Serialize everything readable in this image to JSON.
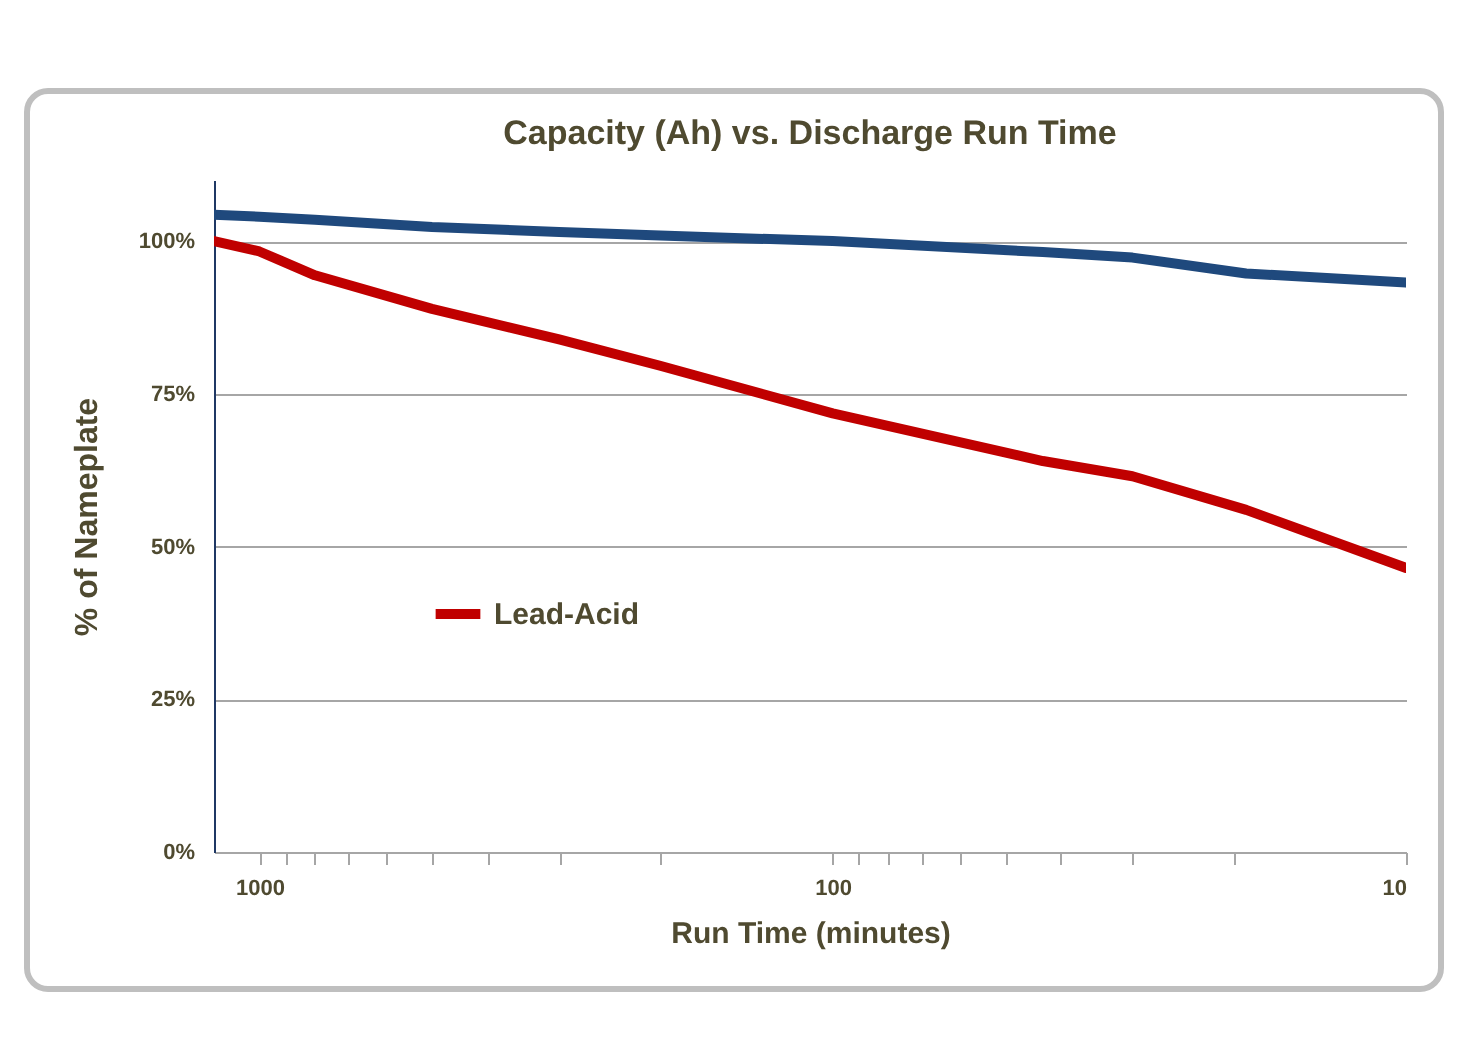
{
  "chart_data": {
    "type": "line",
    "title": "Capacity (Ah) vs. Discharge Run Time",
    "xlabel": "Run Time (minutes)",
    "ylabel": "% of Nameplate",
    "x": [
      1200,
      1000,
      800,
      500,
      300,
      200,
      100,
      43,
      30,
      19,
      10
    ],
    "series": [
      {
        "color": "#1f497d",
        "values": [
          104.3,
          104,
          103.5,
          102.3,
          101.5,
          100.9,
          100,
          98.2,
          97.3,
          94.7,
          93.2
        ]
      },
      {
        "name": "Lead-Acid",
        "color": "#c00000",
        "values": [
          100,
          98.3,
          94.4,
          88.9,
          83.9,
          79.6,
          71.8,
          64,
          61.5,
          56,
          46.5
        ]
      }
    ],
    "log": "x",
    "xlim": [
      1200,
      10
    ],
    "xticks": [
      1000,
      {
        "value": 900,
        "label": null
      },
      {
        "value": 800,
        "label": null
      },
      {
        "value": 700,
        "label": null
      },
      {
        "value": 600,
        "label": null
      },
      {
        "value": 500,
        "label": null
      },
      {
        "value": 400,
        "label": null
      },
      {
        "value": 300,
        "label": null
      },
      {
        "value": 200,
        "label": null
      },
      100,
      {
        "value": 90,
        "label": null
      },
      {
        "value": 80,
        "label": null
      },
      {
        "value": 70,
        "label": null
      },
      {
        "value": 60,
        "label": null
      },
      {
        "value": 50,
        "label": null
      },
      {
        "value": 40,
        "label": null
      },
      {
        "value": 30,
        "label": null
      },
      {
        "value": 20,
        "label": null
      },
      10
    ],
    "ylim": [
      0,
      110
    ],
    "yticks": [
      {
        "value": 0,
        "label": "0%"
      },
      {
        "value": 25,
        "label": "25%"
      },
      {
        "value": 50,
        "label": "50%"
      },
      {
        "value": 75,
        "label": "75%"
      },
      {
        "value": 100,
        "label": "100%"
      }
    ],
    "grid": "y",
    "legend": "left",
    "marker": "none",
    "line_style": "solid"
  }
}
